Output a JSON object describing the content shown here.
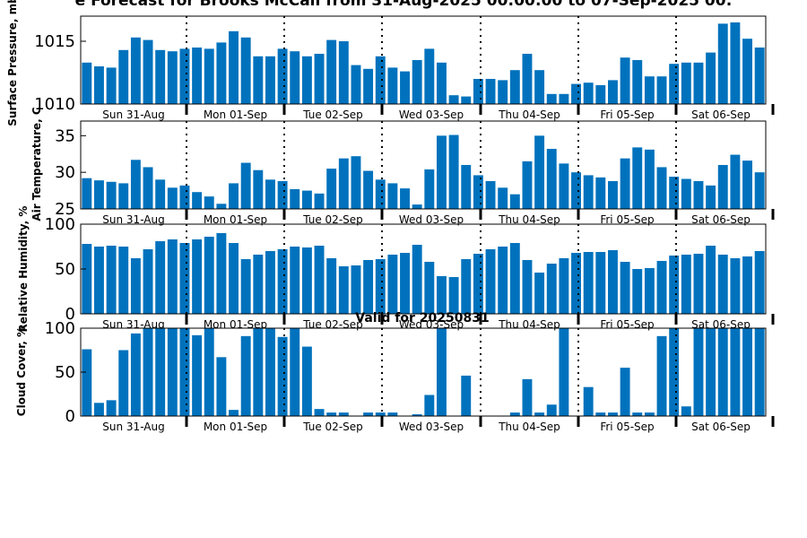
{
  "title": "e Forecast for Brooks McCall from 31-Aug-2025 00:00:00 to 07-Sep-2025 00:",
  "subtitle": "Valid for 20250831",
  "colors": {
    "bar": "#0072BD",
    "axis": "#000000"
  },
  "chart_data": [
    {
      "type": "bar",
      "ylabel": "Surface Pressure, mb",
      "ylim": [
        1010,
        1017
      ],
      "yticks": [
        1010,
        1015
      ],
      "day_labels": [
        "Sun 31-Aug",
        "Mon 01-Sep",
        "Tue 02-Sep",
        "Wed 03-Sep",
        "Thu 04-Sep",
        "Fri 05-Sep",
        "Sat 06-Sep"
      ],
      "values": [
        1013.3,
        1013.0,
        1012.9,
        1014.3,
        1015.3,
        1015.1,
        1014.3,
        1014.2,
        1014.4,
        1014.5,
        1014.4,
        1014.9,
        1015.8,
        1015.3,
        1013.8,
        1013.8,
        1014.4,
        1014.2,
        1013.8,
        1014.0,
        1015.1,
        1015.0,
        1013.1,
        1012.8,
        1013.8,
        1012.9,
        1012.6,
        1013.5,
        1014.4,
        1013.3,
        1010.7,
        1010.6,
        1012.0,
        1012.0,
        1011.9,
        1012.7,
        1014.0,
        1012.7,
        1010.8,
        1010.8,
        1011.6,
        1011.7,
        1011.5,
        1011.9,
        1013.7,
        1013.5,
        1012.2,
        1012.2,
        1013.2,
        1013.3,
        1013.3,
        1014.1,
        1016.4,
        1016.5,
        1015.2,
        1014.5
      ]
    },
    {
      "type": "bar",
      "ylabel": "Air Temperature, C",
      "ylim": [
        25,
        37
      ],
      "yticks": [
        25,
        30,
        35
      ],
      "day_labels": [
        "Sun 31-Aug",
        "Mon 01-Sep",
        "Tue 02-Sep",
        "Wed 03-Sep",
        "Thu 04-Sep",
        "Fri 05-Sep",
        "Sat 06-Sep"
      ],
      "values": [
        29.2,
        28.9,
        28.7,
        28.5,
        31.7,
        30.7,
        29.0,
        27.9,
        28.2,
        27.3,
        26.7,
        25.7,
        28.5,
        31.3,
        30.3,
        29.0,
        28.8,
        27.7,
        27.5,
        27.1,
        30.5,
        31.9,
        32.2,
        30.2,
        29.0,
        28.5,
        27.8,
        25.6,
        30.4,
        35.0,
        35.1,
        31.0,
        29.6,
        28.8,
        27.9,
        27.0,
        31.5,
        35.0,
        33.2,
        31.2,
        30.0,
        29.6,
        29.3,
        28.8,
        31.9,
        33.4,
        33.1,
        30.7,
        29.4,
        29.1,
        28.8,
        28.2,
        31.0,
        32.4,
        31.6,
        30.0
      ]
    },
    {
      "type": "bar",
      "ylabel": "Relative Humidity, %",
      "ylim": [
        0,
        100
      ],
      "yticks": [
        0,
        50,
        100
      ],
      "day_labels": [
        "Sun 31-Aug",
        "Mon 01-Sep",
        "Tue 02-Sep",
        "Wed 03-Sep",
        "Thu 04-Sep",
        "Fri 05-Sep",
        "Sat 06-Sep"
      ],
      "values": [
        78,
        75,
        76,
        75,
        62,
        72,
        81,
        83,
        79,
        83,
        86,
        90,
        79,
        61,
        66,
        70,
        72,
        75,
        74,
        76,
        62,
        53,
        54,
        60,
        61,
        66,
        68,
        77,
        58,
        42,
        41,
        61,
        67,
        72,
        75,
        79,
        60,
        46,
        56,
        62,
        68,
        69,
        69,
        71,
        58,
        50,
        51,
        59,
        65,
        66,
        67,
        76,
        66,
        62,
        64,
        70
      ]
    },
    {
      "type": "bar",
      "ylabel": "Cloud Cover, %",
      "ylim": [
        0,
        100
      ],
      "yticks": [
        0,
        50,
        100
      ],
      "day_labels": [
        "Sun 31-Aug",
        "Mon 01-Sep",
        "Tue 02-Sep",
        "Wed 03-Sep",
        "Thu 04-Sep",
        "Fri 05-Sep",
        "Sat 06-Sep"
      ],
      "values": [
        76,
        15,
        18,
        75,
        94,
        100,
        100,
        100,
        100,
        92,
        100,
        67,
        7,
        91,
        100,
        100,
        90,
        100,
        79,
        8,
        4,
        4,
        0,
        4,
        4,
        4,
        0,
        2,
        24,
        100,
        0,
        46,
        0,
        0,
        0,
        4,
        42,
        4,
        13,
        100,
        0,
        33,
        4,
        4,
        55,
        4,
        4,
        91,
        100,
        11,
        100,
        100,
        100,
        100,
        100,
        100
      ]
    }
  ]
}
